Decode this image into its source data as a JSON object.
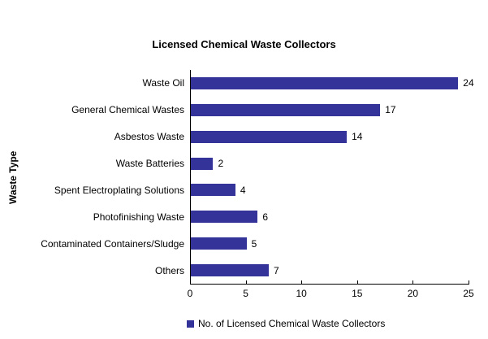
{
  "chart_data": {
    "type": "bar",
    "orientation": "horizontal",
    "title": "Licensed Chemical Waste Collectors",
    "xlabel": "",
    "ylabel": "Waste Type",
    "categories": [
      "Waste Oil",
      "General Chemical Wastes",
      "Asbestos Waste",
      "Waste Batteries",
      "Spent Electroplating Solutions",
      "Photofinishing Waste",
      "Contaminated Containers/Sludge",
      "Others"
    ],
    "values": [
      24,
      17,
      14,
      2,
      4,
      6,
      5,
      7
    ],
    "xlim": [
      0,
      25
    ],
    "xticks": [
      0,
      5,
      10,
      15,
      20,
      25
    ],
    "grid": false,
    "data_labels": true,
    "legend": {
      "position": "bottom",
      "label": "No. of Licensed Chemical Waste Collectors"
    },
    "colors": {
      "bar": "#333399",
      "axis": "#000000",
      "text": "#000000",
      "background": "#ffffff"
    }
  }
}
